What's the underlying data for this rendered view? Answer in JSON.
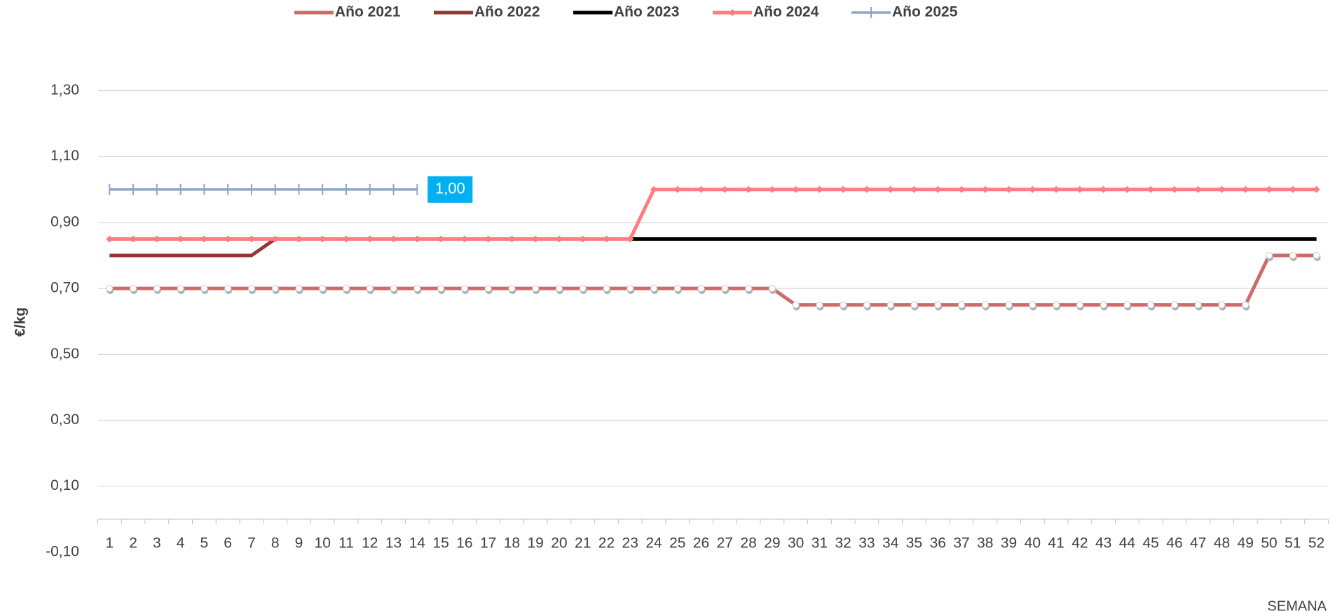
{
  "chart_data": {
    "type": "line",
    "y_label": "€/kg",
    "x_label": "SEMANA",
    "categories": [
      "1",
      "2",
      "3",
      "4",
      "5",
      "6",
      "7",
      "8",
      "9",
      "10",
      "11",
      "12",
      "13",
      "14",
      "15",
      "16",
      "17",
      "18",
      "19",
      "20",
      "21",
      "22",
      "23",
      "24",
      "25",
      "26",
      "27",
      "28",
      "29",
      "30",
      "31",
      "32",
      "33",
      "34",
      "35",
      "36",
      "37",
      "38",
      "39",
      "40",
      "41",
      "42",
      "43",
      "44",
      "45",
      "46",
      "47",
      "48",
      "49",
      "50",
      "51",
      "52"
    ],
    "ylim": [
      -0.1,
      1.3
    ],
    "yticks": [
      {
        "value": -0.1,
        "label": "-0,10"
      },
      {
        "value": 0.1,
        "label": "0,10"
      },
      {
        "value": 0.3,
        "label": "0,30"
      },
      {
        "value": 0.5,
        "label": "0,50"
      },
      {
        "value": 0.7,
        "label": "0,70"
      },
      {
        "value": 0.9,
        "label": "0,90"
      },
      {
        "value": 1.1,
        "label": "1,10"
      },
      {
        "value": 1.3,
        "label": "1,30"
      }
    ],
    "grid": true,
    "legend": "top",
    "series": [
      {
        "name": "Año 2021",
        "color": "#cd6b6b",
        "marker": "circle",
        "values": [
          0.7,
          0.7,
          0.7,
          0.7,
          0.7,
          0.7,
          0.7,
          0.7,
          0.7,
          0.7,
          0.7,
          0.7,
          0.7,
          0.7,
          0.7,
          0.7,
          0.7,
          0.7,
          0.7,
          0.7,
          0.7,
          0.7,
          0.7,
          0.7,
          0.7,
          0.7,
          0.7,
          0.7,
          0.7,
          0.65,
          0.65,
          0.65,
          0.65,
          0.65,
          0.65,
          0.65,
          0.65,
          0.65,
          0.65,
          0.65,
          0.65,
          0.65,
          0.65,
          0.65,
          0.65,
          0.65,
          0.65,
          0.65,
          0.65,
          0.8,
          0.8,
          0.8
        ]
      },
      {
        "name": "Año 2022",
        "color": "#943634",
        "marker": "none",
        "values": [
          0.8,
          0.8,
          0.8,
          0.8,
          0.8,
          0.8,
          0.8,
          0.85,
          0.85,
          0.85,
          0.85,
          0.85,
          0.85,
          0.85,
          0.85,
          0.85,
          0.85,
          0.85,
          0.85,
          0.85,
          0.85,
          0.85,
          0.85,
          0.85,
          0.85,
          0.85,
          0.85,
          0.85,
          0.85,
          0.85,
          0.85,
          0.85,
          0.85,
          0.85,
          0.85,
          0.85,
          0.85,
          0.85,
          0.85,
          0.85,
          0.85,
          0.85,
          0.85,
          0.85,
          0.85,
          0.85,
          0.85,
          0.85,
          0.85,
          0.85,
          0.85,
          0.85
        ]
      },
      {
        "name": "Año 2023",
        "color": "#000000",
        "marker": "none",
        "values": [
          0.85,
          0.85,
          0.85,
          0.85,
          0.85,
          0.85,
          0.85,
          0.85,
          0.85,
          0.85,
          0.85,
          0.85,
          0.85,
          0.85,
          0.85,
          0.85,
          0.85,
          0.85,
          0.85,
          0.85,
          0.85,
          0.85,
          0.85,
          0.85,
          0.85,
          0.85,
          0.85,
          0.85,
          0.85,
          0.85,
          0.85,
          0.85,
          0.85,
          0.85,
          0.85,
          0.85,
          0.85,
          0.85,
          0.85,
          0.85,
          0.85,
          0.85,
          0.85,
          0.85,
          0.85,
          0.85,
          0.85,
          0.85,
          0.85,
          0.85,
          0.85,
          0.85
        ]
      },
      {
        "name": "Año 2024",
        "color": "#ff7c80",
        "marker": "diamond",
        "values": [
          0.85,
          0.85,
          0.85,
          0.85,
          0.85,
          0.85,
          0.85,
          0.85,
          0.85,
          0.85,
          0.85,
          0.85,
          0.85,
          0.85,
          0.85,
          0.85,
          0.85,
          0.85,
          0.85,
          0.85,
          0.85,
          0.85,
          0.85,
          1.0,
          1.0,
          1.0,
          1.0,
          1.0,
          1.0,
          1.0,
          1.0,
          1.0,
          1.0,
          1.0,
          1.0,
          1.0,
          1.0,
          1.0,
          1.0,
          1.0,
          1.0,
          1.0,
          1.0,
          1.0,
          1.0,
          1.0,
          1.0,
          1.0,
          1.0,
          1.0,
          1.0,
          1.0
        ]
      },
      {
        "name": "Año 2025",
        "color": "#8ea5c8",
        "marker": "plus",
        "values": [
          1.0,
          1.0,
          1.0,
          1.0,
          1.0,
          1.0,
          1.0,
          1.0,
          1.0,
          1.0,
          1.0,
          1.0,
          1.0,
          1.0,
          null,
          null,
          null,
          null,
          null,
          null,
          null,
          null,
          null,
          null,
          null,
          null,
          null,
          null,
          null,
          null,
          null,
          null,
          null,
          null,
          null,
          null,
          null,
          null,
          null,
          null,
          null,
          null,
          null,
          null,
          null,
          null,
          null,
          null,
          null,
          null,
          null,
          null
        ],
        "value_labels": [
          null,
          null,
          null,
          null,
          null,
          null,
          null,
          null,
          null,
          null,
          null,
          null,
          null,
          "1,00",
          null,
          null,
          null,
          null,
          null,
          null,
          null,
          null,
          null,
          null,
          null,
          null,
          null,
          null,
          null,
          null,
          null,
          null,
          null,
          null,
          null,
          null,
          null,
          null,
          null,
          null,
          null,
          null,
          null,
          null,
          null,
          null,
          null,
          null,
          null,
          null,
          null,
          null
        ]
      }
    ]
  }
}
